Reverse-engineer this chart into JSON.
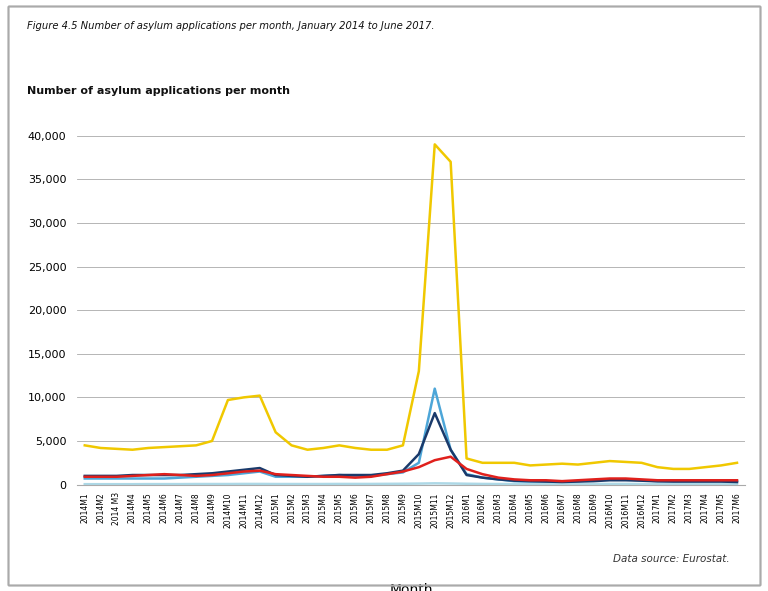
{
  "title_fig": "Figure 4.5 Number of asylum applications per month, January 2014 to June 2017.",
  "ylabel": "Number of asylum applications per month",
  "xlabel": "Month",
  "datasource": "Data source: Eurostat.",
  "ylim": [
    0,
    42000
  ],
  "yticks": [
    0,
    5000,
    10000,
    15000,
    20000,
    25000,
    30000,
    35000,
    40000
  ],
  "colors": {
    "DK": "#e0201c",
    "FI": "#4da6d8",
    "IS": "#add8e6",
    "NO": "#1a3a6b",
    "SE": "#f0c800"
  },
  "months": [
    "2014M1",
    "2014M2",
    "2014 M3",
    "2014M4",
    "2014M5",
    "2014M6",
    "2014M7",
    "2014M8",
    "2014M9",
    "2014M10",
    "2014M11",
    "2014M12",
    "2015M1",
    "2015M2",
    "2015M3",
    "2015M4",
    "2015M5",
    "2015M6",
    "2015M7",
    "2015M8",
    "2015M9",
    "2015M10",
    "2015M11",
    "2015M12",
    "2016M1",
    "2016M2",
    "2016M3",
    "2016M4",
    "2016M5",
    "2016M6",
    "2016M7",
    "2016M8",
    "2016M9",
    "2016M10",
    "2016M11",
    "2016M12",
    "2017M1",
    "2017M2",
    "2017M3",
    "2017M4",
    "2017M5",
    "2017M6"
  ],
  "DK": [
    900,
    900,
    900,
    1000,
    1100,
    1200,
    1100,
    1000,
    1100,
    1300,
    1500,
    1600,
    1200,
    1100,
    1000,
    900,
    900,
    800,
    900,
    1200,
    1500,
    2000,
    2800,
    3200,
    1800,
    1200,
    800,
    600,
    500,
    500,
    400,
    500,
    600,
    700,
    700,
    600,
    500,
    500,
    500,
    500,
    500,
    500
  ],
  "FI": [
    700,
    700,
    700,
    700,
    700,
    700,
    800,
    900,
    1000,
    1100,
    1300,
    1500,
    900,
    900,
    900,
    1000,
    1100,
    1000,
    1000,
    1200,
    1400,
    2500,
    11000,
    4000,
    1200,
    800,
    600,
    400,
    350,
    350,
    350,
    400,
    500,
    600,
    600,
    500,
    400,
    400,
    400,
    400,
    400,
    400
  ],
  "IS": [
    50,
    50,
    50,
    50,
    60,
    60,
    60,
    70,
    70,
    70,
    80,
    80,
    70,
    70,
    70,
    70,
    80,
    80,
    80,
    90,
    100,
    120,
    150,
    130,
    100,
    80,
    70,
    60,
    60,
    60,
    60,
    70,
    70,
    80,
    80,
    70,
    60,
    60,
    60,
    60,
    60,
    60
  ],
  "NO": [
    1000,
    1000,
    1000,
    1100,
    1100,
    1100,
    1100,
    1200,
    1300,
    1500,
    1700,
    1900,
    1100,
    1000,
    900,
    1000,
    1100,
    1100,
    1100,
    1300,
    1600,
    3500,
    8200,
    4000,
    1100,
    800,
    600,
    450,
    400,
    350,
    300,
    350,
    400,
    500,
    500,
    450,
    380,
    350,
    350,
    350,
    350,
    300
  ],
  "SE": [
    4500,
    4200,
    4100,
    4000,
    4200,
    4300,
    4400,
    4500,
    5000,
    9700,
    10000,
    10200,
    6000,
    4500,
    4000,
    4200,
    4500,
    4200,
    4000,
    4000,
    4500,
    13000,
    39000,
    37000,
    3000,
    2500,
    2500,
    2500,
    2200,
    2300,
    2400,
    2300,
    2500,
    2700,
    2600,
    2500,
    2000,
    1800,
    1800,
    2000,
    2200,
    2500
  ]
}
